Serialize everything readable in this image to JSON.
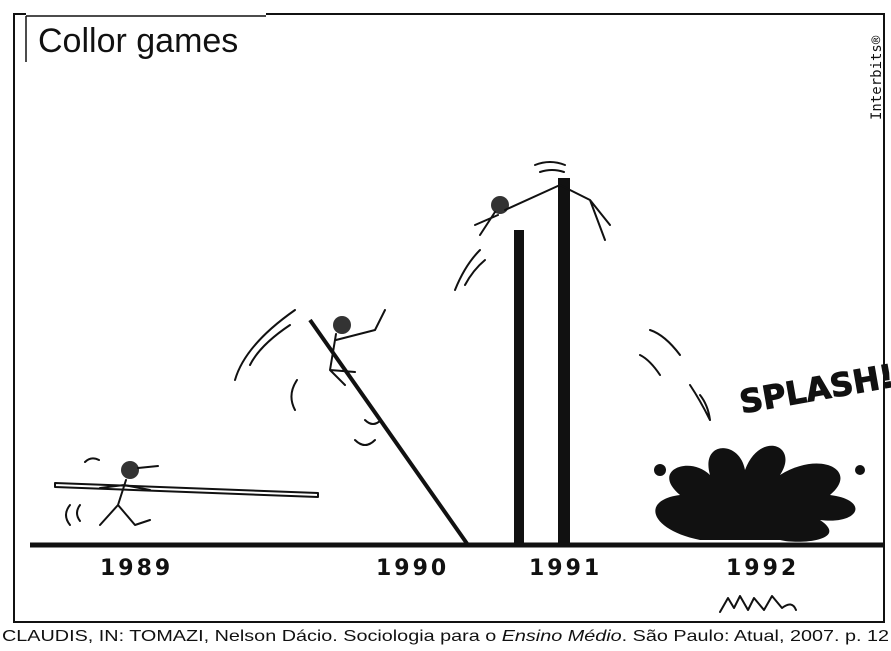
{
  "title": "Collor games",
  "credit": "Interbits®",
  "splash": "SPLASH!",
  "years": [
    "1989",
    "1990",
    "1991",
    "1992"
  ],
  "caption": {
    "before": "CLAUDIS, IN: TOMAZI, Nelson Dácio. Sociologia para o ",
    "italic": "Ensino Médio",
    "after": ". São Paulo: Atual, 2007. p. 12"
  }
}
